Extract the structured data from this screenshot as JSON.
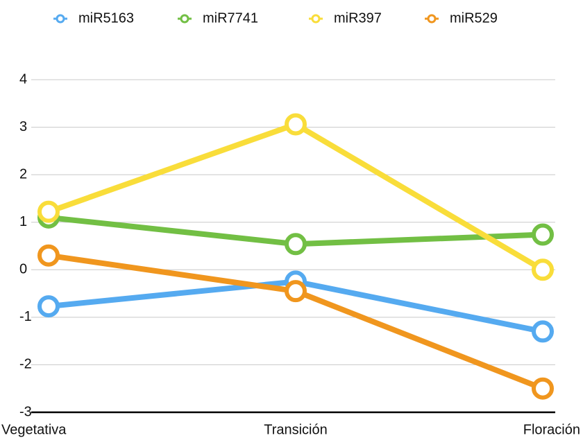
{
  "chart_data": {
    "type": "line",
    "categories": [
      "Vegetativa",
      "Transición",
      "Floración"
    ],
    "series": [
      {
        "name": "miR5163",
        "color": "#55aaf0",
        "values": [
          -0.77,
          -0.25,
          -1.3
        ]
      },
      {
        "name": "miR7741",
        "color": "#72bf44",
        "values": [
          1.1,
          0.54,
          0.74
        ]
      },
      {
        "name": "miR397",
        "color": "#f9dd3a",
        "values": [
          1.22,
          3.06,
          0
        ]
      },
      {
        "name": "miR529",
        "color": "#f0961e",
        "values": [
          0.3,
          -0.45,
          -2.5
        ]
      }
    ],
    "ylim": [
      -3,
      4
    ],
    "yticks": [
      -3,
      -2,
      -1,
      0,
      1,
      2,
      3,
      4
    ],
    "grid": true,
    "legend": "top"
  }
}
